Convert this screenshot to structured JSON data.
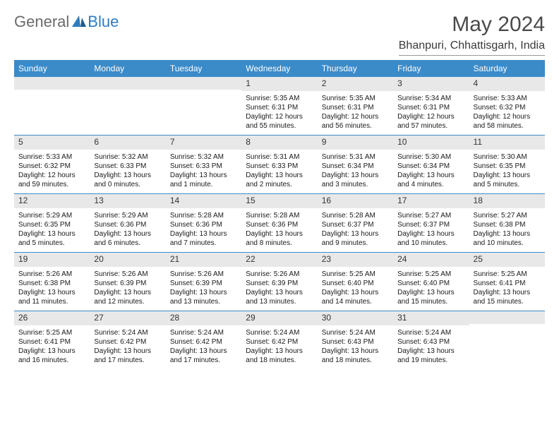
{
  "logo": {
    "general": "General",
    "blue": "Blue"
  },
  "title": "May 2024",
  "subtitle": "Bhanpuri, Chhattisgarh, India",
  "colors": {
    "header_bg": "#3b8bc9",
    "header_text": "#ffffff",
    "daynum_bg": "#e8e8e8",
    "week_border": "#3b8bc9",
    "logo_blue": "#2e7cc0",
    "logo_gray": "#6a6a6a"
  },
  "day_names": [
    "Sunday",
    "Monday",
    "Tuesday",
    "Wednesday",
    "Thursday",
    "Friday",
    "Saturday"
  ],
  "weeks": [
    [
      {
        "empty": true
      },
      {
        "empty": true
      },
      {
        "empty": true
      },
      {
        "n": "1",
        "sr": "5:35 AM",
        "ss": "6:31 PM",
        "dl": "12 hours and 55 minutes."
      },
      {
        "n": "2",
        "sr": "5:35 AM",
        "ss": "6:31 PM",
        "dl": "12 hours and 56 minutes."
      },
      {
        "n": "3",
        "sr": "5:34 AM",
        "ss": "6:31 PM",
        "dl": "12 hours and 57 minutes."
      },
      {
        "n": "4",
        "sr": "5:33 AM",
        "ss": "6:32 PM",
        "dl": "12 hours and 58 minutes."
      }
    ],
    [
      {
        "n": "5",
        "sr": "5:33 AM",
        "ss": "6:32 PM",
        "dl": "12 hours and 59 minutes."
      },
      {
        "n": "6",
        "sr": "5:32 AM",
        "ss": "6:33 PM",
        "dl": "13 hours and 0 minutes."
      },
      {
        "n": "7",
        "sr": "5:32 AM",
        "ss": "6:33 PM",
        "dl": "13 hours and 1 minute."
      },
      {
        "n": "8",
        "sr": "5:31 AM",
        "ss": "6:33 PM",
        "dl": "13 hours and 2 minutes."
      },
      {
        "n": "9",
        "sr": "5:31 AM",
        "ss": "6:34 PM",
        "dl": "13 hours and 3 minutes."
      },
      {
        "n": "10",
        "sr": "5:30 AM",
        "ss": "6:34 PM",
        "dl": "13 hours and 4 minutes."
      },
      {
        "n": "11",
        "sr": "5:30 AM",
        "ss": "6:35 PM",
        "dl": "13 hours and 5 minutes."
      }
    ],
    [
      {
        "n": "12",
        "sr": "5:29 AM",
        "ss": "6:35 PM",
        "dl": "13 hours and 5 minutes."
      },
      {
        "n": "13",
        "sr": "5:29 AM",
        "ss": "6:36 PM",
        "dl": "13 hours and 6 minutes."
      },
      {
        "n": "14",
        "sr": "5:28 AM",
        "ss": "6:36 PM",
        "dl": "13 hours and 7 minutes."
      },
      {
        "n": "15",
        "sr": "5:28 AM",
        "ss": "6:36 PM",
        "dl": "13 hours and 8 minutes."
      },
      {
        "n": "16",
        "sr": "5:28 AM",
        "ss": "6:37 PM",
        "dl": "13 hours and 9 minutes."
      },
      {
        "n": "17",
        "sr": "5:27 AM",
        "ss": "6:37 PM",
        "dl": "13 hours and 10 minutes."
      },
      {
        "n": "18",
        "sr": "5:27 AM",
        "ss": "6:38 PM",
        "dl": "13 hours and 10 minutes."
      }
    ],
    [
      {
        "n": "19",
        "sr": "5:26 AM",
        "ss": "6:38 PM",
        "dl": "13 hours and 11 minutes."
      },
      {
        "n": "20",
        "sr": "5:26 AM",
        "ss": "6:39 PM",
        "dl": "13 hours and 12 minutes."
      },
      {
        "n": "21",
        "sr": "5:26 AM",
        "ss": "6:39 PM",
        "dl": "13 hours and 13 minutes."
      },
      {
        "n": "22",
        "sr": "5:26 AM",
        "ss": "6:39 PM",
        "dl": "13 hours and 13 minutes."
      },
      {
        "n": "23",
        "sr": "5:25 AM",
        "ss": "6:40 PM",
        "dl": "13 hours and 14 minutes."
      },
      {
        "n": "24",
        "sr": "5:25 AM",
        "ss": "6:40 PM",
        "dl": "13 hours and 15 minutes."
      },
      {
        "n": "25",
        "sr": "5:25 AM",
        "ss": "6:41 PM",
        "dl": "13 hours and 15 minutes."
      }
    ],
    [
      {
        "n": "26",
        "sr": "5:25 AM",
        "ss": "6:41 PM",
        "dl": "13 hours and 16 minutes."
      },
      {
        "n": "27",
        "sr": "5:24 AM",
        "ss": "6:42 PM",
        "dl": "13 hours and 17 minutes."
      },
      {
        "n": "28",
        "sr": "5:24 AM",
        "ss": "6:42 PM",
        "dl": "13 hours and 17 minutes."
      },
      {
        "n": "29",
        "sr": "5:24 AM",
        "ss": "6:42 PM",
        "dl": "13 hours and 18 minutes."
      },
      {
        "n": "30",
        "sr": "5:24 AM",
        "ss": "6:43 PM",
        "dl": "13 hours and 18 minutes."
      },
      {
        "n": "31",
        "sr": "5:24 AM",
        "ss": "6:43 PM",
        "dl": "13 hours and 19 minutes."
      },
      {
        "empty": true
      }
    ]
  ],
  "labels": {
    "sunrise": "Sunrise: ",
    "sunset": "Sunset: ",
    "daylight": "Daylight: "
  }
}
